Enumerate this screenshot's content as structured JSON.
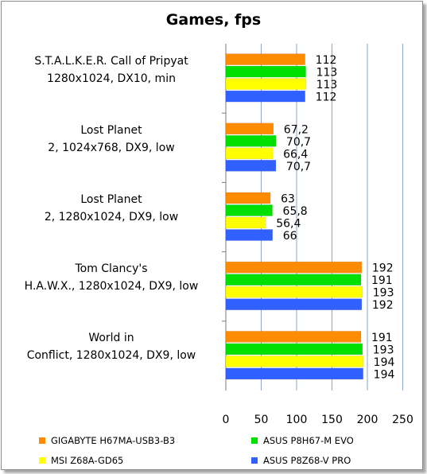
{
  "chart_data": {
    "type": "bar",
    "orientation": "horizontal",
    "title": "Games, fps",
    "categories": [
      [
        "S.T.A.L.K.E.R. Call of Pripyat",
        "1280x1024, DX10, min"
      ],
      [
        "Lost Planet",
        "2, 1024x768, DX9, low"
      ],
      [
        "Lost Planet",
        "2, 1280x1024, DX9, low"
      ],
      [
        "Tom Clancy's",
        "H.A.W.X., 1280x1024, DX9, low"
      ],
      [
        "World in",
        "Conflict, 1280x1024, DX9, low"
      ]
    ],
    "series": [
      {
        "name": "GIGABYTE H67MA-USB3-B3",
        "color": "#ff8c00",
        "values": [
          112,
          67.2,
          63,
          192,
          191
        ],
        "labels": [
          "112",
          "67,2",
          "63",
          "192",
          "191"
        ]
      },
      {
        "name": "ASUS P8H67-M EVO",
        "color": "#00e000",
        "values": [
          113,
          70.7,
          65.8,
          191,
          193
        ],
        "labels": [
          "113",
          "70,7",
          "65,8",
          "191",
          "193"
        ]
      },
      {
        "name": "MSI Z68A-GD65",
        "color": "#ffff00",
        "values": [
          113,
          66.4,
          56.4,
          193,
          194
        ],
        "labels": [
          "113",
          "66,4",
          "56,4",
          "193",
          "194"
        ]
      },
      {
        "name": "ASUS P8Z68-V PRO",
        "color": "#3060ff",
        "values": [
          112,
          70.7,
          66,
          192,
          194
        ],
        "labels": [
          "112",
          "70,7",
          "66",
          "192",
          "194"
        ]
      }
    ],
    "xlim": [
      0,
      250
    ],
    "xticks": [
      0,
      50,
      100,
      150,
      200,
      250
    ],
    "grid": true,
    "legend_position": "bottom"
  }
}
